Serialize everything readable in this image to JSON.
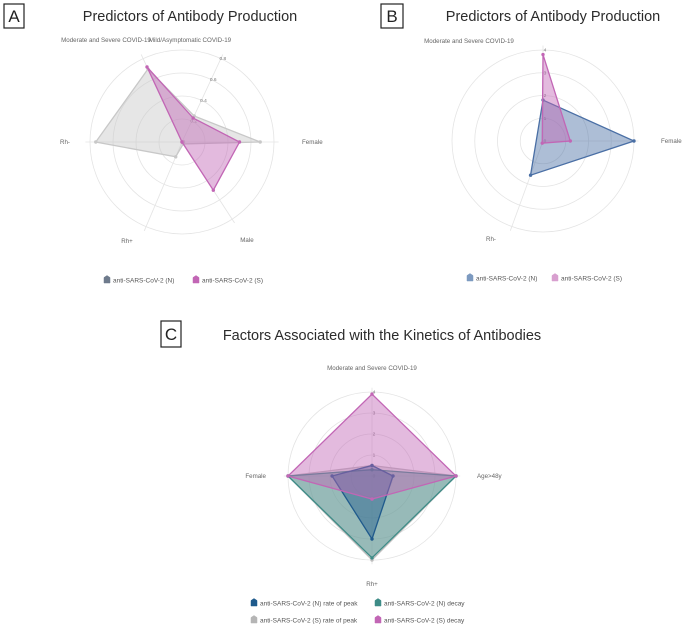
{
  "chart_data": [
    {
      "panel": "A",
      "type": "radar",
      "title": "Predictors of Antibody Production",
      "axes": [
        "Mild/Asymptomatic COVID-19",
        "Female",
        "Male",
        "Rh+",
        "Rh-",
        "Moderate and Severe COVID-19"
      ],
      "range": [
        0,
        0.8
      ],
      "ticks": [
        0,
        0.2,
        0.4,
        0.6,
        0.8
      ],
      "tick_labels": [
        "0",
        "0.2",
        "0.4",
        "0.6",
        "0.8"
      ],
      "series": [
        {
          "name": "anti-SARS-CoV-2 (N)",
          "color": "#c8c8c8",
          "values": [
            0.25,
            0.68,
            0.02,
            0.14,
            0.75,
            0.7
          ]
        },
        {
          "name": "anti-SARS-CoV-2 (S)",
          "color": "#c266b5",
          "values": [
            0.23,
            0.5,
            0.5,
            0.0,
            0.0,
            0.72
          ]
        }
      ],
      "legend": [
        {
          "label": "anti-SARS-CoV-2 (N)",
          "color": "#6e7b8c"
        },
        {
          "label": "anti-SARS-CoV-2 (S)",
          "color": "#c266b5"
        }
      ]
    },
    {
      "panel": "B",
      "type": "radar",
      "title": "Predictors of Antibody Production",
      "axes": [
        "Moderate and Severe COVID-19",
        "Female",
        "Rh-"
      ],
      "range": [
        0,
        4
      ],
      "ticks": [
        0,
        1,
        2,
        3,
        4
      ],
      "tick_labels": [
        "0",
        "1",
        "2",
        "3",
        "4"
      ],
      "series": [
        {
          "name": "anti-SARS-CoV-2 (N)",
          "color": "#4a6fa5",
          "values": [
            1.8,
            4.0,
            1.6
          ]
        },
        {
          "name": "anti-SARS-CoV-2 (S)",
          "color": "#c266b5",
          "values": [
            3.8,
            1.2,
            0.1
          ]
        }
      ],
      "legend": [
        {
          "label": "anti-SARS-CoV-2 (N)",
          "color": "#7d9ac0"
        },
        {
          "label": "anti-SARS-CoV-2 (S)",
          "color": "#d89fcf"
        }
      ]
    },
    {
      "panel": "C",
      "type": "radar",
      "title": "Factors Associated with the Kinetics of Antibodies",
      "axes": [
        "Moderate and Severe COVID-19",
        "Age>48y",
        "Rh+",
        "Female"
      ],
      "range": [
        0,
        4
      ],
      "ticks": [
        0,
        1,
        2,
        3,
        4
      ],
      "tick_labels": [
        "0",
        "1",
        "2",
        "3",
        "4"
      ],
      "series": [
        {
          "name": "anti-SARS-CoV-2 (S) rate of peak",
          "color": "#bdbdbd",
          "values": [
            0.5,
            4.0,
            4.0,
            4.0
          ]
        },
        {
          "name": "anti-SARS-CoV-2 (N) decay",
          "color": "#3e8c87",
          "values": [
            0.3,
            4.0,
            3.9,
            4.0
          ]
        },
        {
          "name": "anti-SARS-CoV-2 (N) rate of peak",
          "color": "#1f5a8c",
          "values": [
            0.5,
            1.0,
            3.0,
            1.9
          ]
        },
        {
          "name": "anti-SARS-CoV-2 (S) decay",
          "color": "#c266b5",
          "values": [
            3.9,
            4.0,
            1.1,
            4.0
          ]
        }
      ],
      "legend": [
        {
          "label": "anti-SARS-CoV-2 (N) rate of peak",
          "color": "#1f5a8c"
        },
        {
          "label": "anti-SARS-CoV-2 (N) decay",
          "color": "#3e8c87"
        },
        {
          "label": "anti-SARS-CoV-2 (S) rate of peak",
          "color": "#b5b5b5"
        },
        {
          "label": "anti-SARS-CoV-2 (S) decay",
          "color": "#c266b5"
        }
      ]
    }
  ]
}
